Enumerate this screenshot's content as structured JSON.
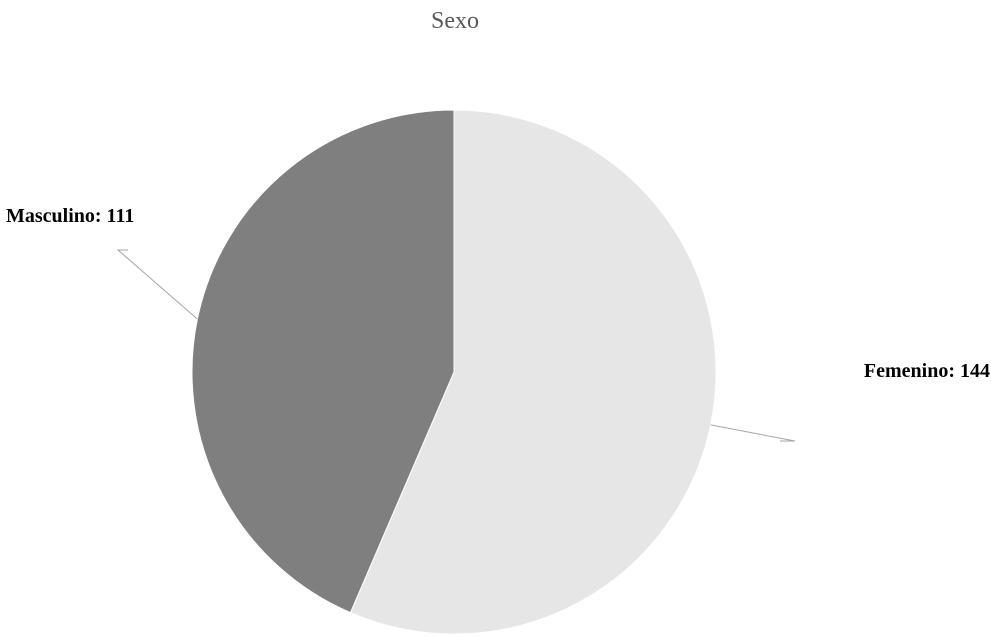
{
  "chart_data": {
    "type": "pie",
    "title": "Sexo",
    "categories": [
      "Femenino",
      "Masculino"
    ],
    "values": [
      144,
      111
    ],
    "labels": [
      "Femenino: 144",
      "Masculino: 111"
    ],
    "colors": [
      "#e6e6e6",
      "#7f7f7f"
    ],
    "start_angle_deg": 0,
    "direction": "clockwise",
    "legend": "none"
  }
}
